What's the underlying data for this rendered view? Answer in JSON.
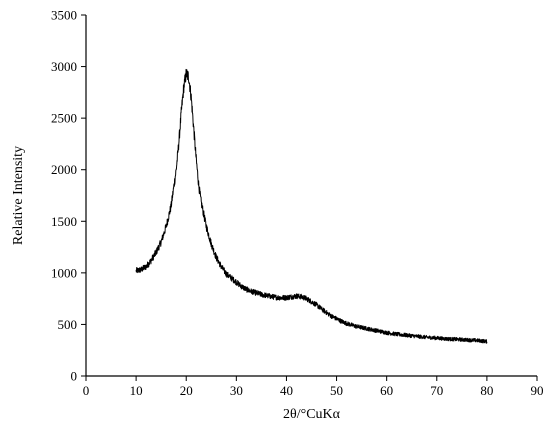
{
  "chart_data": {
    "type": "line",
    "title": "",
    "xlabel": "2θ/°CuKα",
    "ylabel": "Relative Intensity",
    "xlim": [
      0,
      90
    ],
    "ylim": [
      0,
      3500
    ],
    "xticks": [
      0,
      10,
      20,
      30,
      40,
      50,
      60,
      70,
      80,
      90
    ],
    "yticks": [
      0,
      500,
      1000,
      1500,
      2000,
      2500,
      3000,
      3500
    ],
    "grid": false,
    "legend": "none",
    "line_color": "#000000",
    "series": [
      {
        "x": [
          10,
          11,
          12,
          13,
          14,
          15,
          16,
          17,
          18,
          18.5,
          19,
          19.5,
          20,
          20.5,
          21,
          21.5,
          22,
          22.5,
          23,
          24,
          25,
          26,
          27,
          28,
          29,
          30,
          31,
          32,
          33,
          34,
          35,
          36,
          37,
          38,
          39,
          40,
          41,
          42,
          43,
          44,
          45,
          46,
          47,
          48,
          49,
          50,
          51,
          52,
          53,
          54,
          55,
          56,
          57,
          58,
          59,
          60,
          62,
          64,
          66,
          68,
          70,
          72,
          74,
          76,
          78,
          80
        ],
        "y": [
          1020,
          1030,
          1060,
          1120,
          1200,
          1300,
          1450,
          1650,
          2000,
          2250,
          2550,
          2800,
          2930,
          2900,
          2700,
          2400,
          2100,
          1850,
          1680,
          1450,
          1280,
          1150,
          1060,
          990,
          950,
          910,
          870,
          840,
          820,
          805,
          790,
          780,
          770,
          762,
          758,
          760,
          768,
          775,
          768,
          750,
          720,
          690,
          650,
          615,
          580,
          555,
          530,
          510,
          495,
          480,
          470,
          460,
          450,
          440,
          430,
          420,
          405,
          395,
          385,
          375,
          368,
          360,
          355,
          350,
          345,
          335
        ]
      }
    ]
  }
}
